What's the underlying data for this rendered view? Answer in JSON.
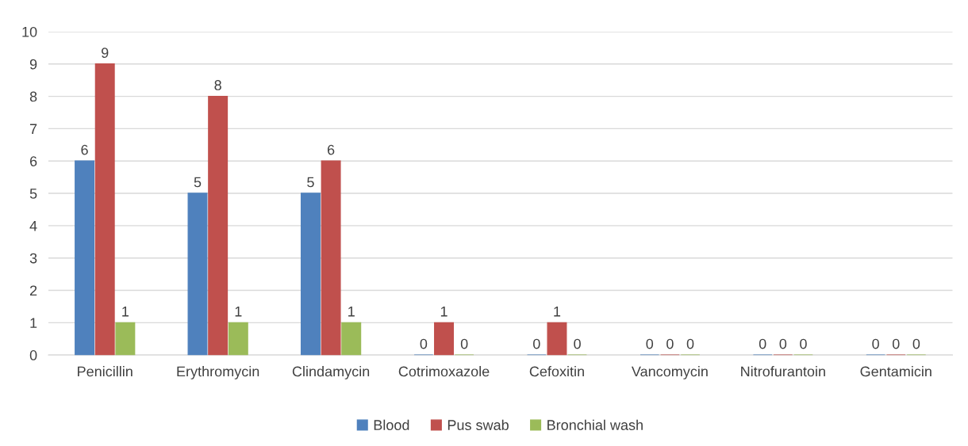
{
  "chart_data": {
    "type": "bar",
    "categories": [
      "Penicillin",
      "Erythromycin",
      "Clindamycin",
      "Cotrimoxazole",
      "Cefoxitin",
      "Vancomycin",
      "Nitrofurantoin",
      "Gentamicin"
    ],
    "series": [
      {
        "name": "Blood",
        "color": "#4f81bd",
        "values": [
          6,
          5,
          5,
          0,
          0,
          0,
          0,
          0
        ]
      },
      {
        "name": "Pus swab",
        "color": "#c0504d",
        "values": [
          9,
          8,
          6,
          1,
          1,
          0,
          0,
          0
        ]
      },
      {
        "name": "Bronchial wash",
        "color": "#9bbb59",
        "values": [
          1,
          1,
          1,
          0,
          0,
          0,
          0,
          0
        ]
      }
    ],
    "ylim": [
      0,
      10
    ],
    "yticks": [
      0,
      1,
      2,
      3,
      4,
      5,
      6,
      7,
      8,
      9,
      10
    ],
    "grid": "y",
    "legend": "bottom",
    "data_labels": true
  }
}
